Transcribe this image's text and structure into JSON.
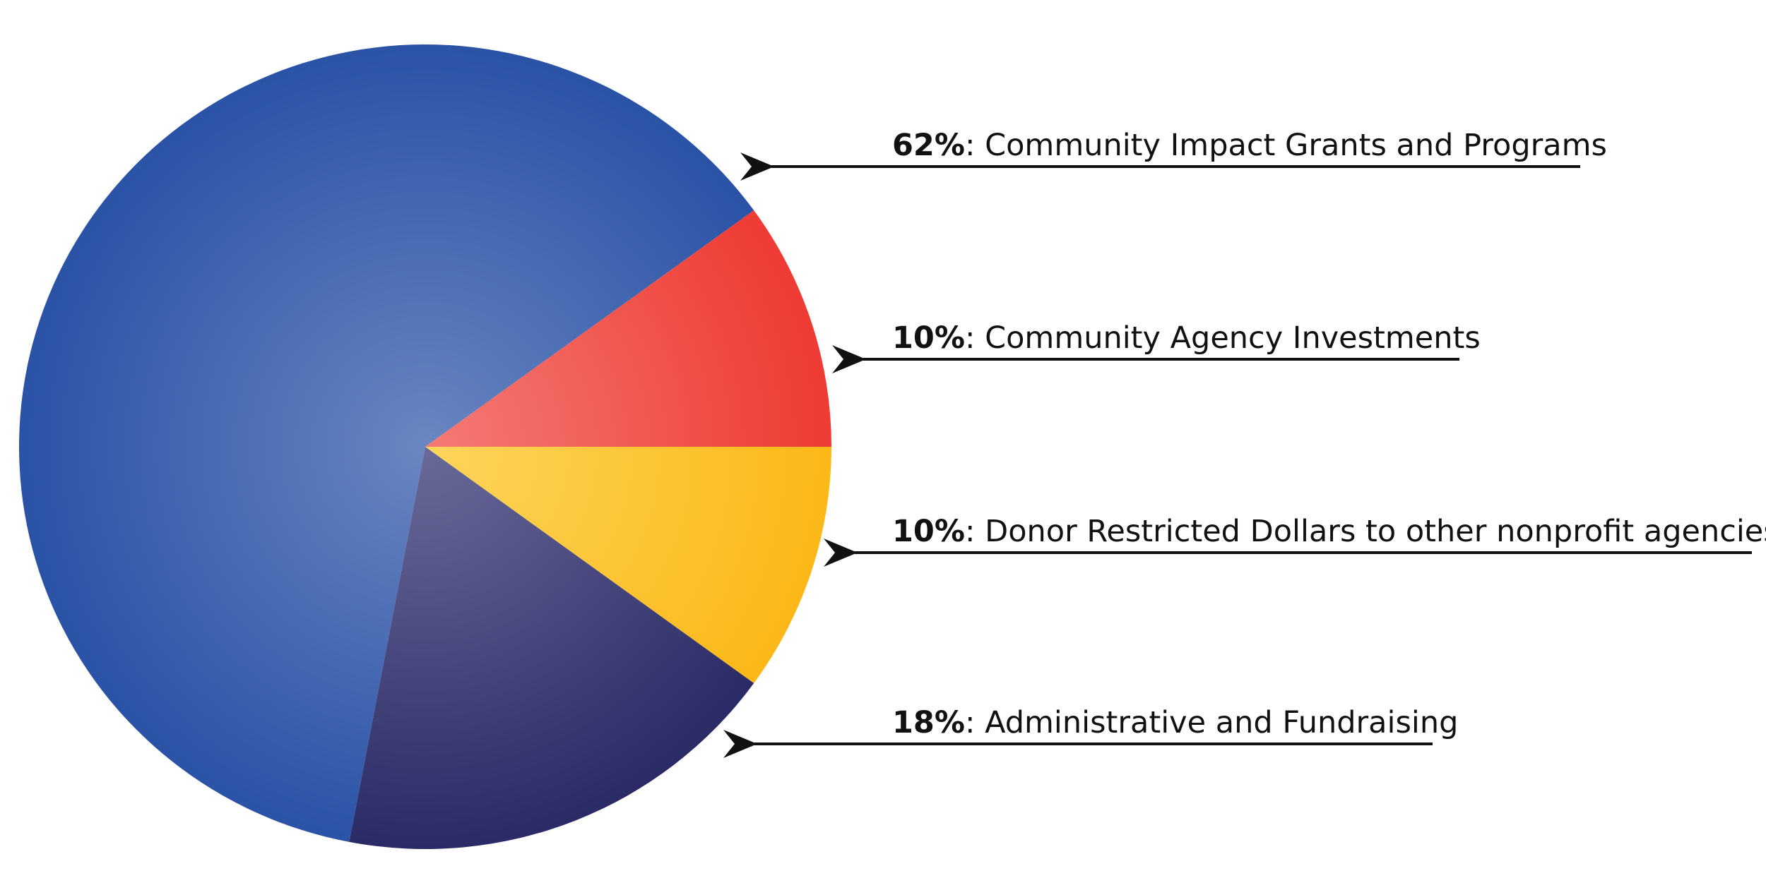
{
  "chart_data": {
    "type": "pie",
    "title": "",
    "slices": [
      {
        "pct_label": "62%",
        "label": "Community Impact Grants and Programs",
        "value": 62,
        "color": "#2a52a6"
      },
      {
        "pct_label": "10%",
        "label": "Community Agency Investments",
        "value": 10,
        "color": "#ee3b33"
      },
      {
        "pct_label": "10%",
        "label": "Donor Restricted Dollars to other nonprofit agencies",
        "value": 10,
        "color": "#fbb817"
      },
      {
        "pct_label": "18%",
        "label": "Administrative and Fundraising",
        "value": 18,
        "color": "#2a2a66"
      }
    ],
    "legend": "right"
  }
}
